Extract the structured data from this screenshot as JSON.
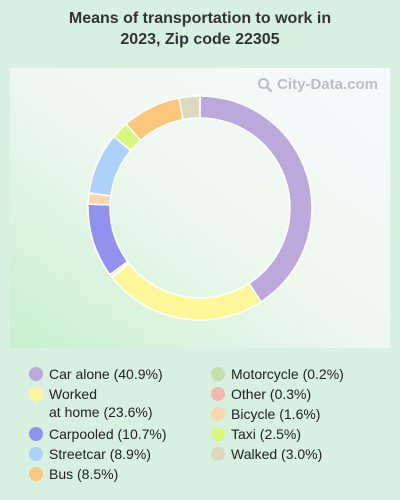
{
  "title_line1": "Means of transportation to work in",
  "title_line2": "2023, Zip code 22305",
  "watermark": "City-Data.com",
  "chart_data": {
    "type": "pie",
    "variant": "donut",
    "title": "Means of transportation to work in 2023, Zip code 22305",
    "legend_placement": "bottom",
    "start": "top",
    "direction": "clockwise",
    "slices": [
      {
        "name": "Car alone",
        "value": 40.9,
        "label": "Car alone (40.9%)",
        "color": "#bca9db"
      },
      {
        "name": "Worked at home",
        "value": 23.6,
        "label": "Worked\nat home (23.6%)",
        "color": "#fdf79a"
      },
      {
        "name": "Motorcycle",
        "value": 0.2,
        "label": "Motorcycle (0.2%)",
        "color": "#c5e0b0"
      },
      {
        "name": "Other",
        "value": 0.3,
        "label": "Other (0.3%)",
        "color": "#f1b8ae"
      },
      {
        "name": "Carpooled",
        "value": 10.7,
        "label": "Carpooled (10.7%)",
        "color": "#9191ee"
      },
      {
        "name": "Bicycle",
        "value": 1.6,
        "label": "Bicycle (1.6%)",
        "color": "#fbd4b0"
      },
      {
        "name": "Streetcar",
        "value": 8.9,
        "label": "Streetcar (8.9%)",
        "color": "#acd2f9"
      },
      {
        "name": "Taxi",
        "value": 2.5,
        "label": "Taxi (2.5%)",
        "color": "#d7f77f"
      },
      {
        "name": "Bus",
        "value": 8.5,
        "label": "Bus (8.5%)",
        "color": "#fcc77b"
      },
      {
        "name": "Walked",
        "value": 3.0,
        "label": "Walked (3.0%)",
        "color": "#ddd8bf"
      }
    ],
    "legend_left": [
      "Car alone",
      "Worked at home",
      "Carpooled",
      "Streetcar",
      "Bus"
    ],
    "legend_right": [
      "Motorcycle",
      "Other",
      "Bicycle",
      "Taxi",
      "Walked"
    ]
  }
}
